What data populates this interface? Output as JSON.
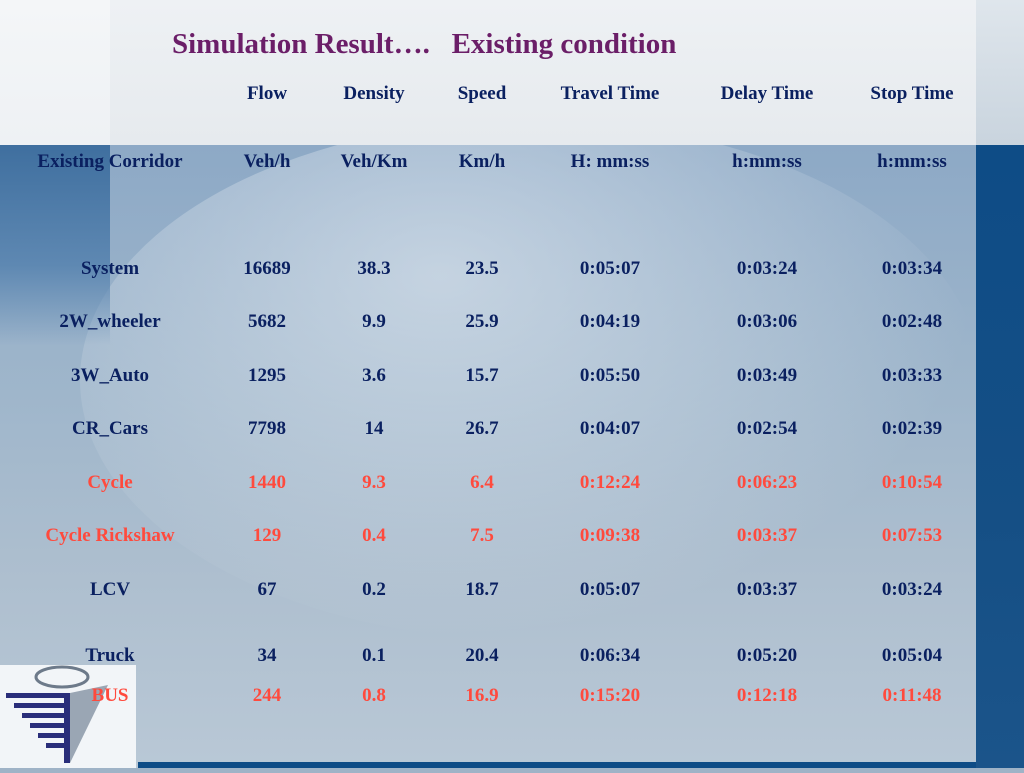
{
  "title": "Simulation Result….   Existing condition",
  "headers": [
    "Flow",
    "Density",
    "Speed",
    "Travel Time",
    "Delay Time",
    "Stop Time"
  ],
  "units": {
    "label": "Existing Corridor",
    "values": [
      "Veh/h",
      "Veh/Km",
      "Km/h",
      "H: mm:ss",
      "h:mm:ss",
      "h:mm:ss"
    ]
  },
  "rows": [
    {
      "name": "System",
      "values": [
        "16689",
        "38.3",
        "23.5",
        "0:05:07",
        "0:03:24",
        "0:03:34"
      ]
    },
    {
      "name": "2W_wheeler",
      "values": [
        "5682",
        "9.9",
        "25.9",
        "0:04:19",
        "0:03:06",
        "0:02:48"
      ]
    },
    {
      "name": "3W_Auto",
      "values": [
        "1295",
        "3.6",
        "15.7",
        "0:05:50",
        "0:03:49",
        "0:03:33"
      ]
    },
    {
      "name": "CR_Cars",
      "values": [
        "7798",
        "14",
        "26.7",
        "0:04:07",
        "0:02:54",
        "0:02:39"
      ]
    },
    {
      "name": "Cycle",
      "values": [
        "1440",
        "9.3",
        "6.4",
        "0:12:24",
        "0:06:23",
        "0:10:54"
      ]
    },
    {
      "name": "Cycle Rickshaw",
      "values": [
        "129",
        "0.4",
        "7.5",
        "0:09:38",
        "0:03:37",
        "0:07:53"
      ]
    },
    {
      "name": "LCV",
      "values": [
        "67",
        "0.2",
        "18.7",
        "0:05:07",
        "0:03:37",
        "0:03:24"
      ]
    },
    {
      "name": "Truck",
      "values": [
        "34",
        "0.1",
        "20.4",
        "0:06:34",
        "0:05:20",
        "0:05:04"
      ]
    },
    {
      "name": "BUS",
      "values": [
        "244",
        "0.8",
        "16.9",
        "0:15:20",
        "0:12:18",
        "0:11:48"
      ]
    }
  ],
  "colors": {
    "title": "#6b1e68",
    "text": "#0a2060",
    "highlight": "#ff4a3d",
    "accent": "#0e4c86"
  }
}
